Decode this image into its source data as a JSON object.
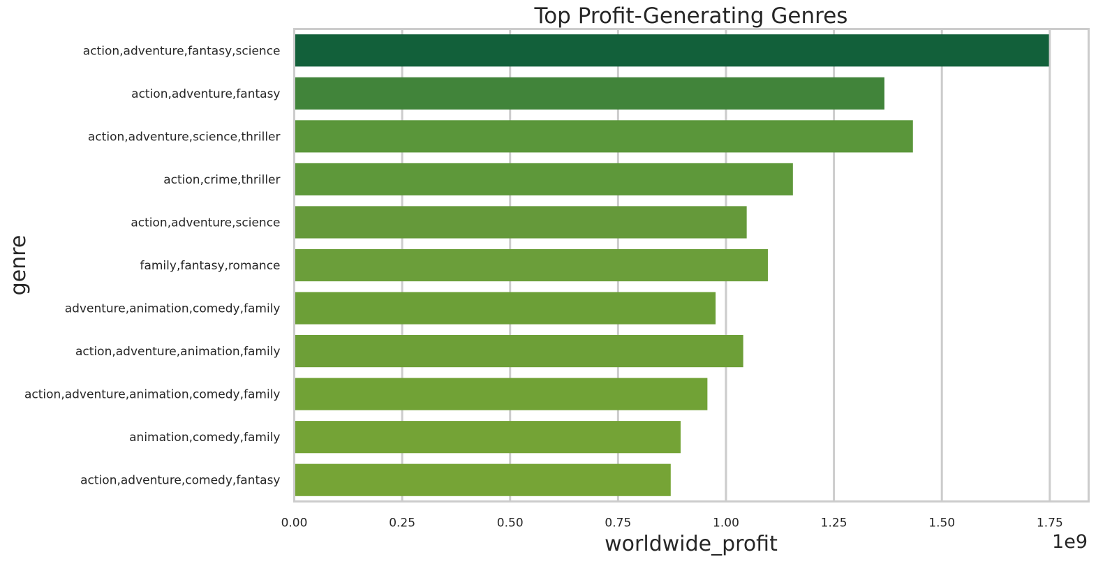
{
  "chart_data": {
    "type": "bar",
    "orientation": "horizontal",
    "title": "Top Profit-Generating Genres",
    "xlabel": "worldwide_profit",
    "ylabel": "genre",
    "x_offset_label": "1e9",
    "xlim": [
      0,
      1.84
    ],
    "xticks": [
      0.0,
      0.25,
      0.5,
      0.75,
      1.0,
      1.25,
      1.5,
      1.75
    ],
    "xtick_labels": [
      "0.00",
      "0.25",
      "0.50",
      "0.75",
      "1.00",
      "1.25",
      "1.50",
      "1.75"
    ],
    "grid": true,
    "categories": [
      "action,adventure,fantasy,science",
      "action,adventure,fantasy",
      "action,adventure,science,thriller",
      "action,crime,thriller",
      "action,adventure,science",
      "family,fantasy,romance",
      "adventure,animation,comedy,family",
      "action,adventure,animation,family",
      "action,adventure,animation,comedy,family",
      "animation,comedy,family",
      "action,adventure,comedy,fantasy"
    ],
    "values": [
      1.748,
      1.367,
      1.433,
      1.155,
      1.048,
      1.097,
      0.976,
      1.04,
      0.957,
      0.895,
      0.872
    ],
    "colors": [
      "#12603a",
      "#41843a",
      "#5a963a",
      "#5e983a",
      "#65993a",
      "#6b9e3a",
      "#6c9f37",
      "#6d9f37",
      "#71a236",
      "#74a336",
      "#76a436"
    ]
  }
}
